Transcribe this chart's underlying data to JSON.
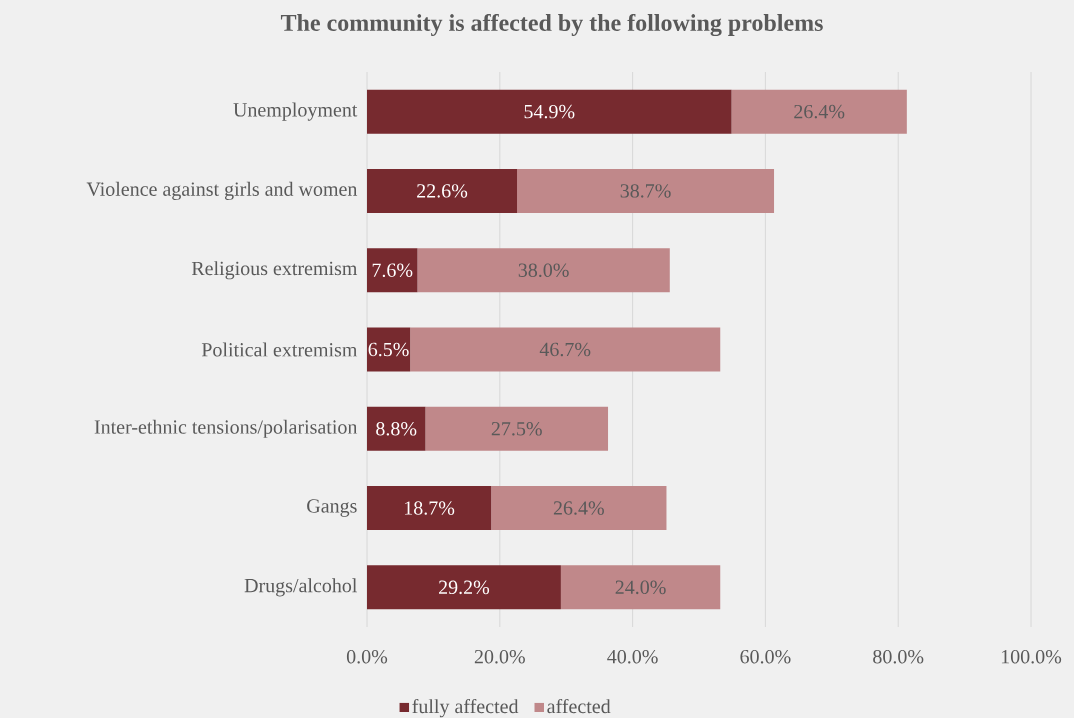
{
  "chart_data": {
    "type": "bar",
    "orientation": "horizontal",
    "stacked": true,
    "title": "The community is affected by the following problems",
    "categories": [
      "Unemployment",
      "Violence against girls and women",
      "Religious extremism",
      "Political extremism",
      "Inter-ethnic tensions/polarisation",
      "Gangs",
      "Drugs/alcohol"
    ],
    "series": [
      {
        "name": "fully affected",
        "color": "#772a2f",
        "values": [
          54.9,
          22.6,
          7.6,
          6.5,
          8.8,
          18.7,
          29.2
        ],
        "value_labels": [
          "54.9%",
          "22.6%",
          "7.6%",
          "6.5%",
          "8.8%",
          "18.7%",
          "29.2%"
        ]
      },
      {
        "name": "affected",
        "color": "#c0888a",
        "values": [
          26.4,
          38.7,
          38.0,
          46.7,
          27.5,
          26.4,
          24.0
        ],
        "value_labels": [
          "26.4%",
          "38.7%",
          "38.0%",
          "46.7%",
          "27.5%",
          "26.4%",
          "24.0%"
        ]
      }
    ],
    "xlim": [
      0,
      100
    ],
    "xticks": [
      {
        "value": 0,
        "label": "0.0%"
      },
      {
        "value": 20,
        "label": "20.0%"
      },
      {
        "value": 40,
        "label": "40.0%"
      },
      {
        "value": 60,
        "label": "60.0%"
      },
      {
        "value": 80,
        "label": "80.0%"
      },
      {
        "value": 100,
        "label": "100.0%"
      }
    ],
    "grid": "x",
    "legend": "bottom"
  }
}
